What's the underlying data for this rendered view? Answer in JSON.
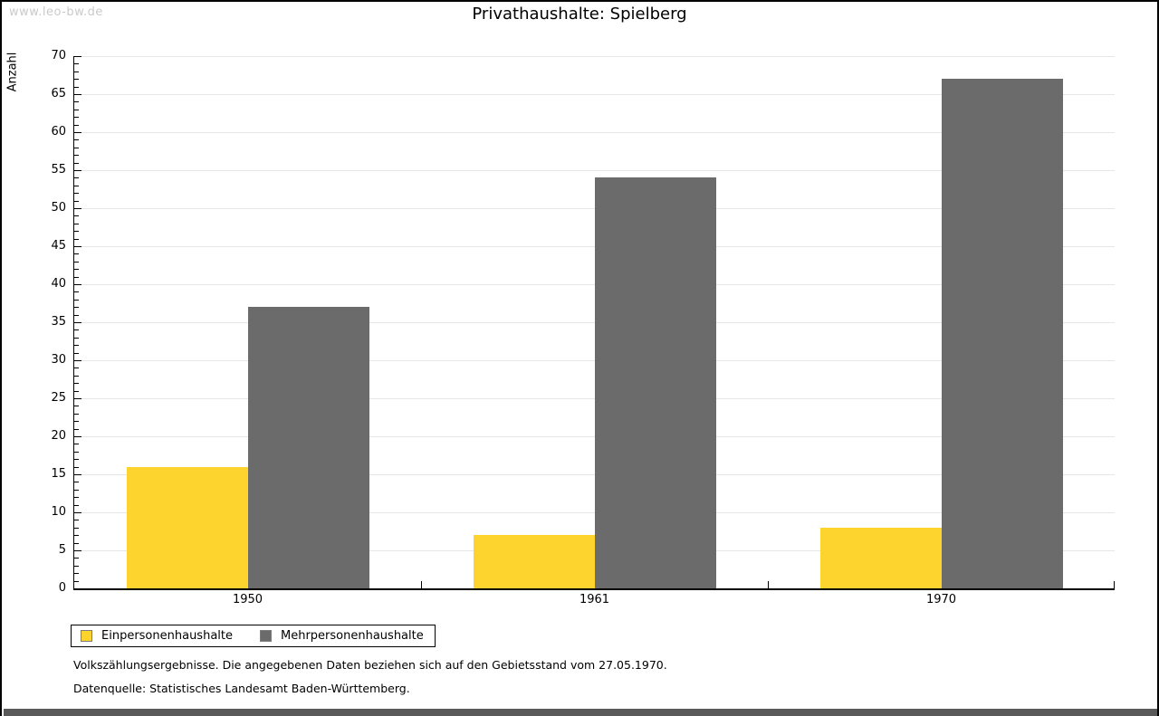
{
  "watermark": "www.leo-bw.de",
  "title": "Privathaushalte: Spielberg",
  "chart_data": {
    "type": "bar",
    "title": "Privathaushalte: Spielberg",
    "xlabel": "",
    "ylabel": "Anzahl",
    "categories": [
      "1950",
      "1961",
      "1970"
    ],
    "series": [
      {
        "name": "Einpersonenhaushalte",
        "color": "#fcd42d",
        "values": [
          16,
          7,
          8
        ]
      },
      {
        "name": "Mehrpersonenhaushalte",
        "color": "#6b6b6b",
        "values": [
          37,
          54,
          67
        ]
      }
    ],
    "ylim": [
      0,
      70
    ],
    "ytick_step": 5,
    "minor_tick_step": 1,
    "grid": true,
    "legend_position": "bottom-left",
    "bar_fraction_of_slot": 0.35
  },
  "footnotes": [
    "Volkszählungsergebnisse. Die angegebenen Daten beziehen sich auf den Gebietsstand vom 27.05.1970.",
    "Datenquelle: Statistisches Landesamt Baden-Württemberg."
  ],
  "colors": {
    "accent_yellow": "#fcd42d",
    "accent_gray": "#6b6b6b",
    "gridline": "#e6e6e6",
    "axis": "#000000",
    "watermark": "#cacaca",
    "bottom_bar": "#5a5a5a"
  }
}
